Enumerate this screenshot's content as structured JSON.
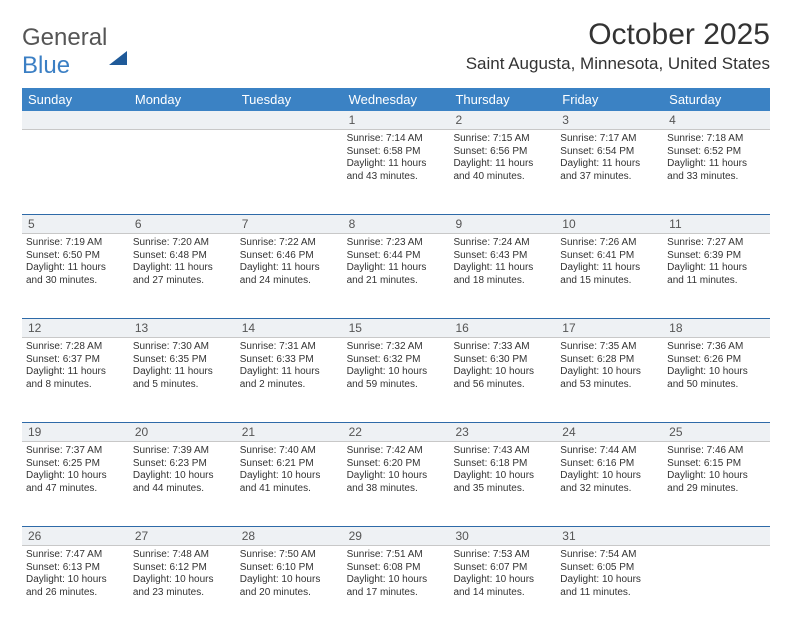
{
  "brand": {
    "text1": "General",
    "text2": "Blue"
  },
  "title": {
    "month": "October 2025",
    "location": "Saint Augusta, Minnesota, United States"
  },
  "colors": {
    "header_bg": "#3b82c4",
    "header_text": "#ffffff",
    "daynum_bg": "#eef1f4",
    "week_border": "#2e6aa8",
    "text": "#333333"
  },
  "day_names": [
    "Sunday",
    "Monday",
    "Tuesday",
    "Wednesday",
    "Thursday",
    "Friday",
    "Saturday"
  ],
  "weeks": [
    {
      "nums": [
        "",
        "",
        "",
        "1",
        "2",
        "3",
        "4"
      ],
      "cells": [
        {
          "sunrise": "",
          "sunset": "",
          "daylight": ""
        },
        {
          "sunrise": "",
          "sunset": "",
          "daylight": ""
        },
        {
          "sunrise": "",
          "sunset": "",
          "daylight": ""
        },
        {
          "sunrise": "Sunrise: 7:14 AM",
          "sunset": "Sunset: 6:58 PM",
          "daylight": "Daylight: 11 hours and 43 minutes."
        },
        {
          "sunrise": "Sunrise: 7:15 AM",
          "sunset": "Sunset: 6:56 PM",
          "daylight": "Daylight: 11 hours and 40 minutes."
        },
        {
          "sunrise": "Sunrise: 7:17 AM",
          "sunset": "Sunset: 6:54 PM",
          "daylight": "Daylight: 11 hours and 37 minutes."
        },
        {
          "sunrise": "Sunrise: 7:18 AM",
          "sunset": "Sunset: 6:52 PM",
          "daylight": "Daylight: 11 hours and 33 minutes."
        }
      ]
    },
    {
      "nums": [
        "5",
        "6",
        "7",
        "8",
        "9",
        "10",
        "11"
      ],
      "cells": [
        {
          "sunrise": "Sunrise: 7:19 AM",
          "sunset": "Sunset: 6:50 PM",
          "daylight": "Daylight: 11 hours and 30 minutes."
        },
        {
          "sunrise": "Sunrise: 7:20 AM",
          "sunset": "Sunset: 6:48 PM",
          "daylight": "Daylight: 11 hours and 27 minutes."
        },
        {
          "sunrise": "Sunrise: 7:22 AM",
          "sunset": "Sunset: 6:46 PM",
          "daylight": "Daylight: 11 hours and 24 minutes."
        },
        {
          "sunrise": "Sunrise: 7:23 AM",
          "sunset": "Sunset: 6:44 PM",
          "daylight": "Daylight: 11 hours and 21 minutes."
        },
        {
          "sunrise": "Sunrise: 7:24 AM",
          "sunset": "Sunset: 6:43 PM",
          "daylight": "Daylight: 11 hours and 18 minutes."
        },
        {
          "sunrise": "Sunrise: 7:26 AM",
          "sunset": "Sunset: 6:41 PM",
          "daylight": "Daylight: 11 hours and 15 minutes."
        },
        {
          "sunrise": "Sunrise: 7:27 AM",
          "sunset": "Sunset: 6:39 PM",
          "daylight": "Daylight: 11 hours and 11 minutes."
        }
      ]
    },
    {
      "nums": [
        "12",
        "13",
        "14",
        "15",
        "16",
        "17",
        "18"
      ],
      "cells": [
        {
          "sunrise": "Sunrise: 7:28 AM",
          "sunset": "Sunset: 6:37 PM",
          "daylight": "Daylight: 11 hours and 8 minutes."
        },
        {
          "sunrise": "Sunrise: 7:30 AM",
          "sunset": "Sunset: 6:35 PM",
          "daylight": "Daylight: 11 hours and 5 minutes."
        },
        {
          "sunrise": "Sunrise: 7:31 AM",
          "sunset": "Sunset: 6:33 PM",
          "daylight": "Daylight: 11 hours and 2 minutes."
        },
        {
          "sunrise": "Sunrise: 7:32 AM",
          "sunset": "Sunset: 6:32 PM",
          "daylight": "Daylight: 10 hours and 59 minutes."
        },
        {
          "sunrise": "Sunrise: 7:33 AM",
          "sunset": "Sunset: 6:30 PM",
          "daylight": "Daylight: 10 hours and 56 minutes."
        },
        {
          "sunrise": "Sunrise: 7:35 AM",
          "sunset": "Sunset: 6:28 PM",
          "daylight": "Daylight: 10 hours and 53 minutes."
        },
        {
          "sunrise": "Sunrise: 7:36 AM",
          "sunset": "Sunset: 6:26 PM",
          "daylight": "Daylight: 10 hours and 50 minutes."
        }
      ]
    },
    {
      "nums": [
        "19",
        "20",
        "21",
        "22",
        "23",
        "24",
        "25"
      ],
      "cells": [
        {
          "sunrise": "Sunrise: 7:37 AM",
          "sunset": "Sunset: 6:25 PM",
          "daylight": "Daylight: 10 hours and 47 minutes."
        },
        {
          "sunrise": "Sunrise: 7:39 AM",
          "sunset": "Sunset: 6:23 PM",
          "daylight": "Daylight: 10 hours and 44 minutes."
        },
        {
          "sunrise": "Sunrise: 7:40 AM",
          "sunset": "Sunset: 6:21 PM",
          "daylight": "Daylight: 10 hours and 41 minutes."
        },
        {
          "sunrise": "Sunrise: 7:42 AM",
          "sunset": "Sunset: 6:20 PM",
          "daylight": "Daylight: 10 hours and 38 minutes."
        },
        {
          "sunrise": "Sunrise: 7:43 AM",
          "sunset": "Sunset: 6:18 PM",
          "daylight": "Daylight: 10 hours and 35 minutes."
        },
        {
          "sunrise": "Sunrise: 7:44 AM",
          "sunset": "Sunset: 6:16 PM",
          "daylight": "Daylight: 10 hours and 32 minutes."
        },
        {
          "sunrise": "Sunrise: 7:46 AM",
          "sunset": "Sunset: 6:15 PM",
          "daylight": "Daylight: 10 hours and 29 minutes."
        }
      ]
    },
    {
      "nums": [
        "26",
        "27",
        "28",
        "29",
        "30",
        "31",
        ""
      ],
      "cells": [
        {
          "sunrise": "Sunrise: 7:47 AM",
          "sunset": "Sunset: 6:13 PM",
          "daylight": "Daylight: 10 hours and 26 minutes."
        },
        {
          "sunrise": "Sunrise: 7:48 AM",
          "sunset": "Sunset: 6:12 PM",
          "daylight": "Daylight: 10 hours and 23 minutes."
        },
        {
          "sunrise": "Sunrise: 7:50 AM",
          "sunset": "Sunset: 6:10 PM",
          "daylight": "Daylight: 10 hours and 20 minutes."
        },
        {
          "sunrise": "Sunrise: 7:51 AM",
          "sunset": "Sunset: 6:08 PM",
          "daylight": "Daylight: 10 hours and 17 minutes."
        },
        {
          "sunrise": "Sunrise: 7:53 AM",
          "sunset": "Sunset: 6:07 PM",
          "daylight": "Daylight: 10 hours and 14 minutes."
        },
        {
          "sunrise": "Sunrise: 7:54 AM",
          "sunset": "Sunset: 6:05 PM",
          "daylight": "Daylight: 10 hours and 11 minutes."
        },
        {
          "sunrise": "",
          "sunset": "",
          "daylight": ""
        }
      ]
    }
  ]
}
